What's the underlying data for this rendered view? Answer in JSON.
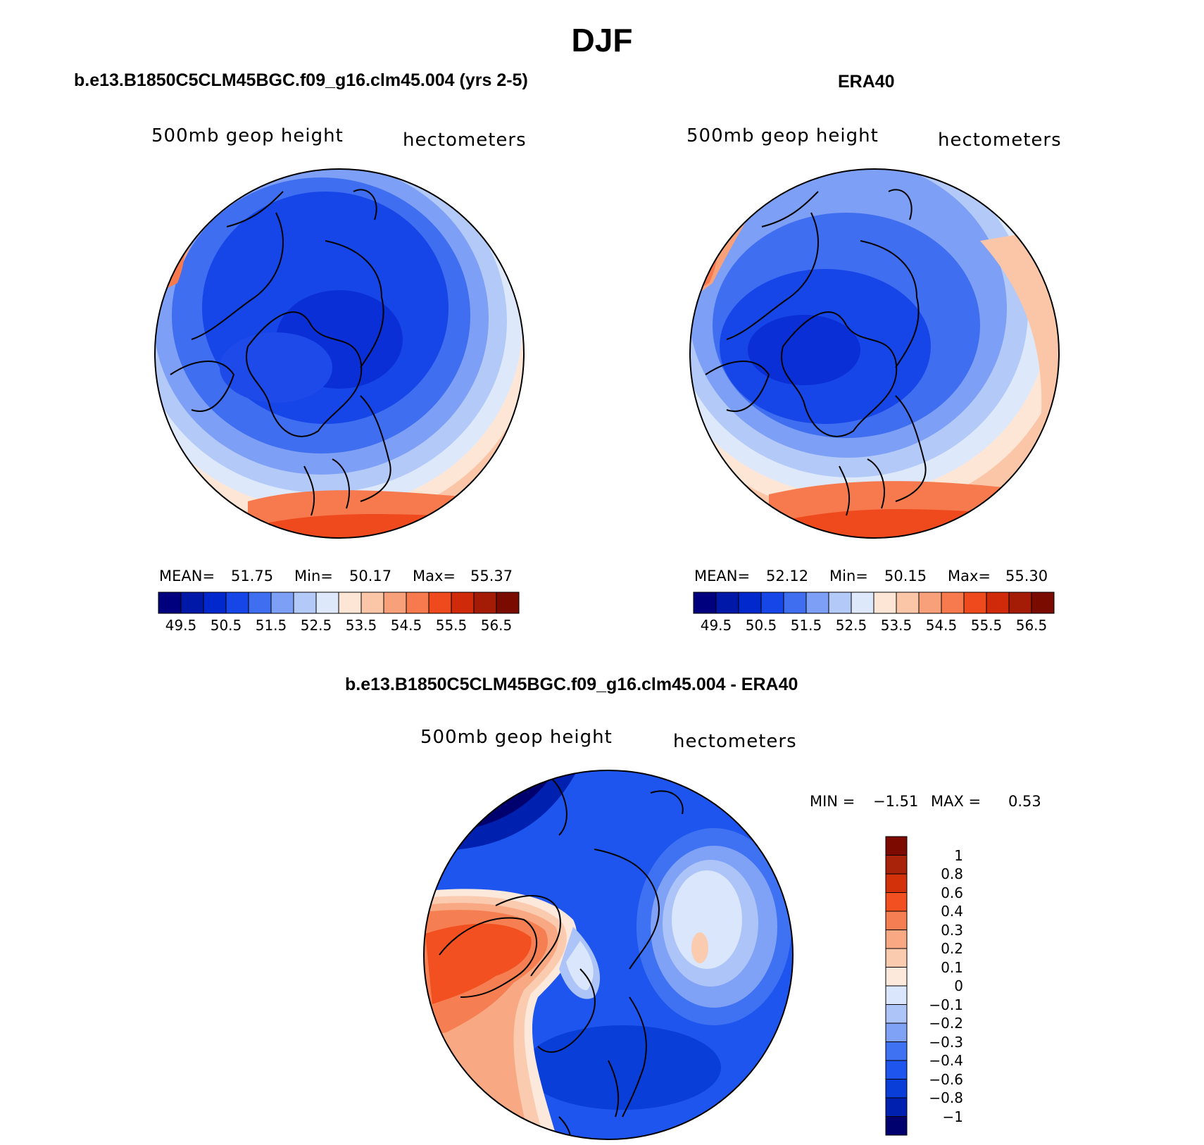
{
  "title": "DJF",
  "panels": {
    "model": {
      "header": "b.e13.B1850C5CLM45BGC.f09_g16.clm45.004 (yrs 2-5)",
      "variable": "500mb geop height",
      "units": "hectometers",
      "stats": {
        "mean_label": "MEAN=",
        "mean": "51.75",
        "min_label": "Min=",
        "min": "50.17",
        "max_label": "Max=",
        "max": "55.37"
      }
    },
    "obs": {
      "header": "ERA40",
      "variable": "500mb geop height",
      "units": "hectometers",
      "stats": {
        "mean_label": "MEAN=",
        "mean": "52.12",
        "min_label": "Min=",
        "min": "50.15",
        "max_label": "Max=",
        "max": "55.30"
      }
    },
    "diff": {
      "header": "b.e13.B1850C5CLM45BGC.f09_g16.clm45.004 - ERA40",
      "variable": "500mb geop height",
      "units": "hectometers",
      "stats": {
        "min_label": "MIN =",
        "min": "−1.51",
        "max_label": "MAX =",
        "max": "0.53"
      }
    }
  },
  "colorbars": {
    "height_colors": [
      "#00007f",
      "#0018a8",
      "#0028cc",
      "#1646e8",
      "#3f6ef0",
      "#7d9ff5",
      "#b3c9f8",
      "#dde9fb",
      "#fde6d6",
      "#fbc6a8",
      "#f8a07a",
      "#f67a4d",
      "#ee4a1e",
      "#cf2a0a",
      "#a51c06",
      "#7a0b00"
    ],
    "height_ticks": [
      "49.5",
      "50.5",
      "51.5",
      "52.5",
      "53.5",
      "54.5",
      "55.5",
      "56.5"
    ],
    "diff_colors": [
      "#00006e",
      "#0020b0",
      "#0a3ed8",
      "#1d55ee",
      "#3f72f2",
      "#7fa1f6",
      "#adc4f8",
      "#d9e6fb",
      "#fde9dc",
      "#fbcbb0",
      "#f8a882",
      "#f57f52",
      "#f25020",
      "#d2310a",
      "#a9230a",
      "#7d0a00"
    ],
    "diff_ticks": [
      "1",
      "0.8",
      "0.6",
      "0.4",
      "0.3",
      "0.2",
      "0.1",
      "0",
      "−0.1",
      "−0.2",
      "−0.3",
      "−0.4",
      "−0.6",
      "−0.8",
      "−1"
    ]
  },
  "map_colors": {
    "deep": "#0b2fd6",
    "mid": "#1d55ee",
    "light": "#3f72f2",
    "paler": "#7fa1f6",
    "pale": "#adc4f8",
    "palest": "#d9e6fb",
    "cream": "#fde6d6",
    "peach": "#fbc6a8",
    "salmon": "#f8a07a",
    "orange": "#f67a4d",
    "red": "#ee4a1e",
    "navy": "#00007f",
    "land_line": "#000000"
  }
}
